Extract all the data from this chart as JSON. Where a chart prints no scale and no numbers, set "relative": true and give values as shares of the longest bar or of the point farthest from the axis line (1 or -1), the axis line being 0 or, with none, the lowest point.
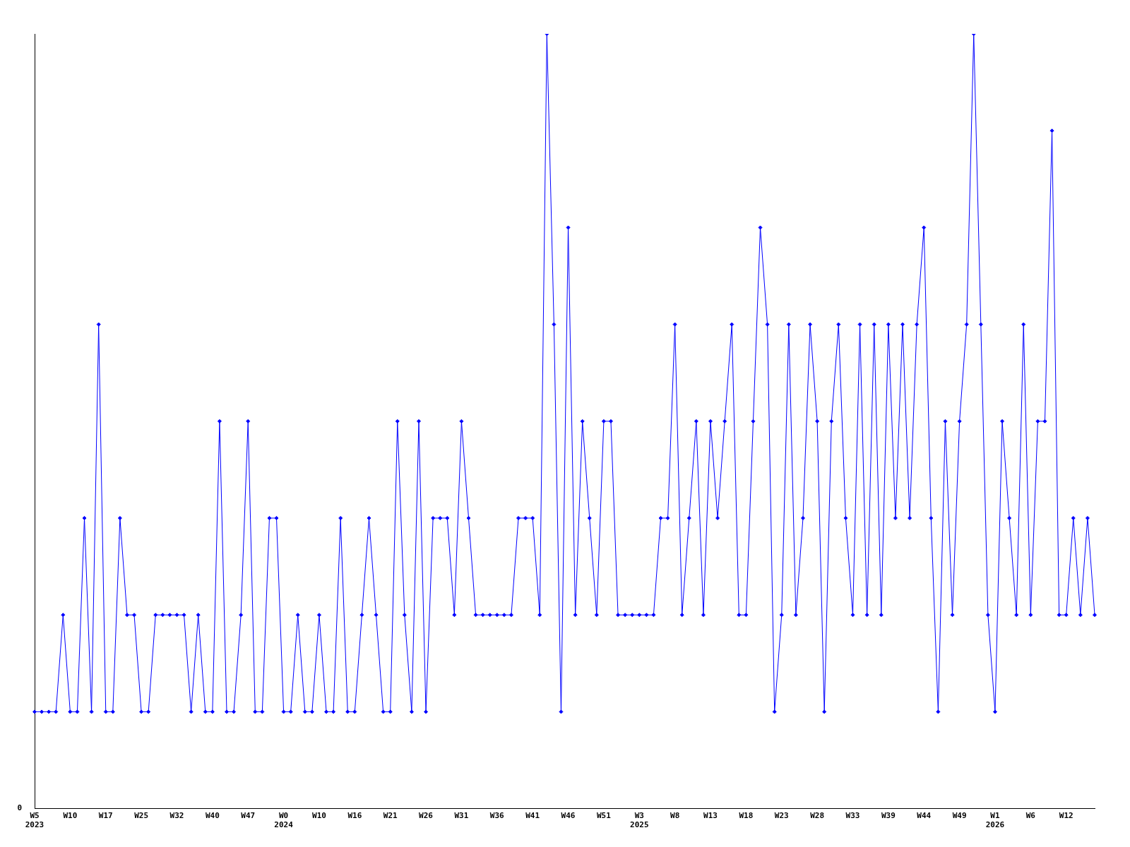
{
  "chart_data": {
    "type": "line",
    "relative": true,
    "marker": "diamond",
    "grid": false,
    "legend": false,
    "annotations": [
      "0"
    ],
    "categories": [
      "W5\n2023",
      null,
      null,
      null,
      null,
      "W10",
      null,
      null,
      null,
      null,
      "W17",
      null,
      null,
      null,
      null,
      "W25",
      null,
      null,
      null,
      null,
      "W32",
      null,
      null,
      null,
      null,
      "W40",
      null,
      null,
      null,
      null,
      "W47",
      null,
      null,
      null,
      null,
      "W0\n2024",
      null,
      null,
      null,
      null,
      "W10",
      null,
      null,
      null,
      null,
      "W16",
      null,
      null,
      null,
      null,
      "W21",
      null,
      null,
      null,
      null,
      "W26",
      null,
      null,
      null,
      null,
      "W31",
      null,
      null,
      null,
      null,
      "W36",
      null,
      null,
      null,
      null,
      "W41",
      null,
      null,
      null,
      null,
      "W46",
      null,
      null,
      null,
      null,
      "W51",
      null,
      null,
      null,
      null,
      "W3\n2025",
      null,
      null,
      null,
      null,
      "W8",
      null,
      null,
      null,
      null,
      "W13",
      null,
      null,
      null,
      null,
      "W18",
      null,
      null,
      null,
      null,
      "W23",
      null,
      null,
      null,
      null,
      "W28",
      null,
      null,
      null,
      null,
      "W33",
      null,
      null,
      null,
      null,
      "W39",
      null,
      null,
      null,
      null,
      "W44",
      null,
      null,
      null,
      null,
      "W49",
      null,
      null,
      null,
      null,
      "W1\n2026",
      null,
      null,
      null,
      null,
      "W6",
      null,
      null,
      null,
      null,
      "W12",
      null,
      null,
      null,
      null
    ],
    "series": [
      {
        "color": "#0000ff",
        "values": [
          0.125,
          0.125,
          0.125,
          0.125,
          0.25,
          0.125,
          0.125,
          0.375,
          0.125,
          0.625,
          0.125,
          0.125,
          0.375,
          0.25,
          0.25,
          0.125,
          0.125,
          0.25,
          0.25,
          0.25,
          0.25,
          0.25,
          0.125,
          0.25,
          0.125,
          0.125,
          0.5,
          0.125,
          0.125,
          0.25,
          0.5,
          0.125,
          0.125,
          0.375,
          0.375,
          0.125,
          0.125,
          0.25,
          0.125,
          0.125,
          0.25,
          0.125,
          0.125,
          0.375,
          0.125,
          0.125,
          0.25,
          0.375,
          0.25,
          0.125,
          0.125,
          0.5,
          0.25,
          0.125,
          0.5,
          0.125,
          0.375,
          0.375,
          0.375,
          0.25,
          0.5,
          0.375,
          0.25,
          0.25,
          0.25,
          0.25,
          0.25,
          0.25,
          0.375,
          0.375,
          0.375,
          0.25,
          1,
          0.625,
          0.125,
          0.75,
          0.25,
          0.5,
          0.375,
          0.25,
          0.5,
          0.5,
          0.25,
          0.25,
          0.25,
          0.25,
          0.25,
          0.25,
          0.375,
          0.375,
          0.625,
          0.25,
          0.375,
          0.5,
          0.25,
          0.5,
          0.375,
          0.5,
          0.625,
          0.25,
          0.25,
          0.5,
          0.75,
          0.625,
          0.125,
          0.25,
          0.625,
          0.25,
          0.375,
          0.625,
          0.5,
          0.125,
          0.5,
          0.625,
          0.375,
          0.25,
          0.625,
          0.25,
          0.625,
          0.25,
          0.625,
          0.375,
          0.625,
          0.375,
          0.625,
          0.75,
          0.375,
          0.125,
          0.5,
          0.25,
          0.5,
          0.625,
          1,
          0.625,
          0.25,
          0.125,
          0.5,
          0.375,
          0.25,
          0.625,
          0.25,
          0.5,
          0.5,
          0.875,
          0.25,
          0.25,
          0.375,
          0.25,
          0.375,
          0.25
        ]
      }
    ]
  }
}
